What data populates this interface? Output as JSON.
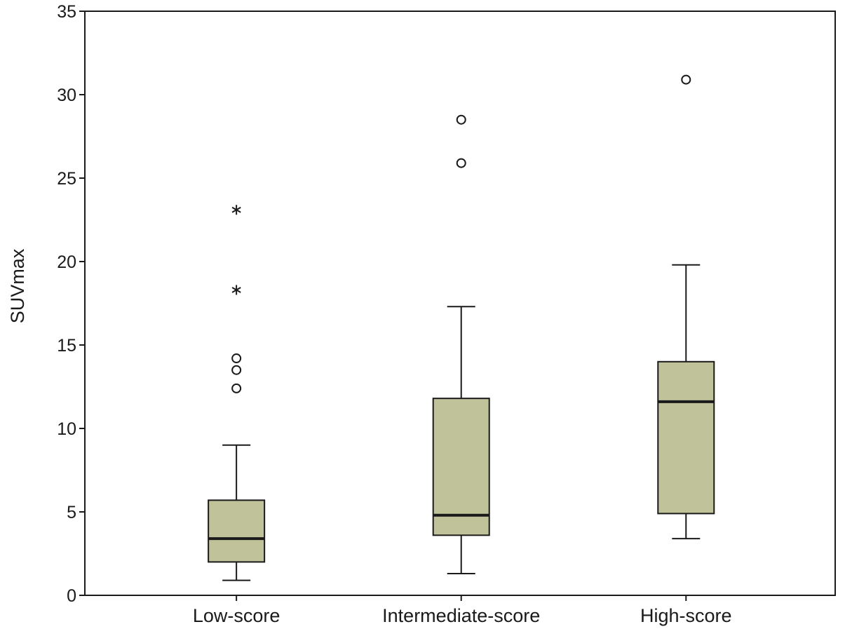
{
  "chart_data": {
    "type": "boxplot",
    "title": "",
    "xlabel": "",
    "ylabel": "SUVmax",
    "ylim": [
      0,
      35
    ],
    "yticks": [
      0,
      5,
      10,
      15,
      20,
      25,
      30,
      35
    ],
    "ytick_labels": [
      "0",
      "5",
      "10",
      "15",
      "20",
      "25",
      "30",
      "35"
    ],
    "grid": false,
    "box_color": "#c0c29a",
    "line_color": "#1a1a1a",
    "categories": [
      "Low-score",
      "Intermediate-score",
      "High-score"
    ],
    "boxes": [
      {
        "category": "Low-score",
        "whisker_low": 0.9,
        "q1": 2.0,
        "median": 3.4,
        "q3": 5.7,
        "whisker_high": 9.0,
        "outliers": [
          12.4,
          13.5,
          14.2
        ],
        "extremes": [
          18.3,
          23.1
        ]
      },
      {
        "category": "Intermediate-score",
        "whisker_low": 1.3,
        "q1": 3.6,
        "median": 4.8,
        "q3": 11.8,
        "whisker_high": 17.3,
        "outliers": [
          25.9,
          28.5
        ],
        "extremes": []
      },
      {
        "category": "High-score",
        "whisker_low": 3.4,
        "q1": 4.9,
        "median": 11.6,
        "q3": 14.0,
        "whisker_high": 19.8,
        "outliers": [
          30.9
        ],
        "extremes": []
      }
    ]
  }
}
